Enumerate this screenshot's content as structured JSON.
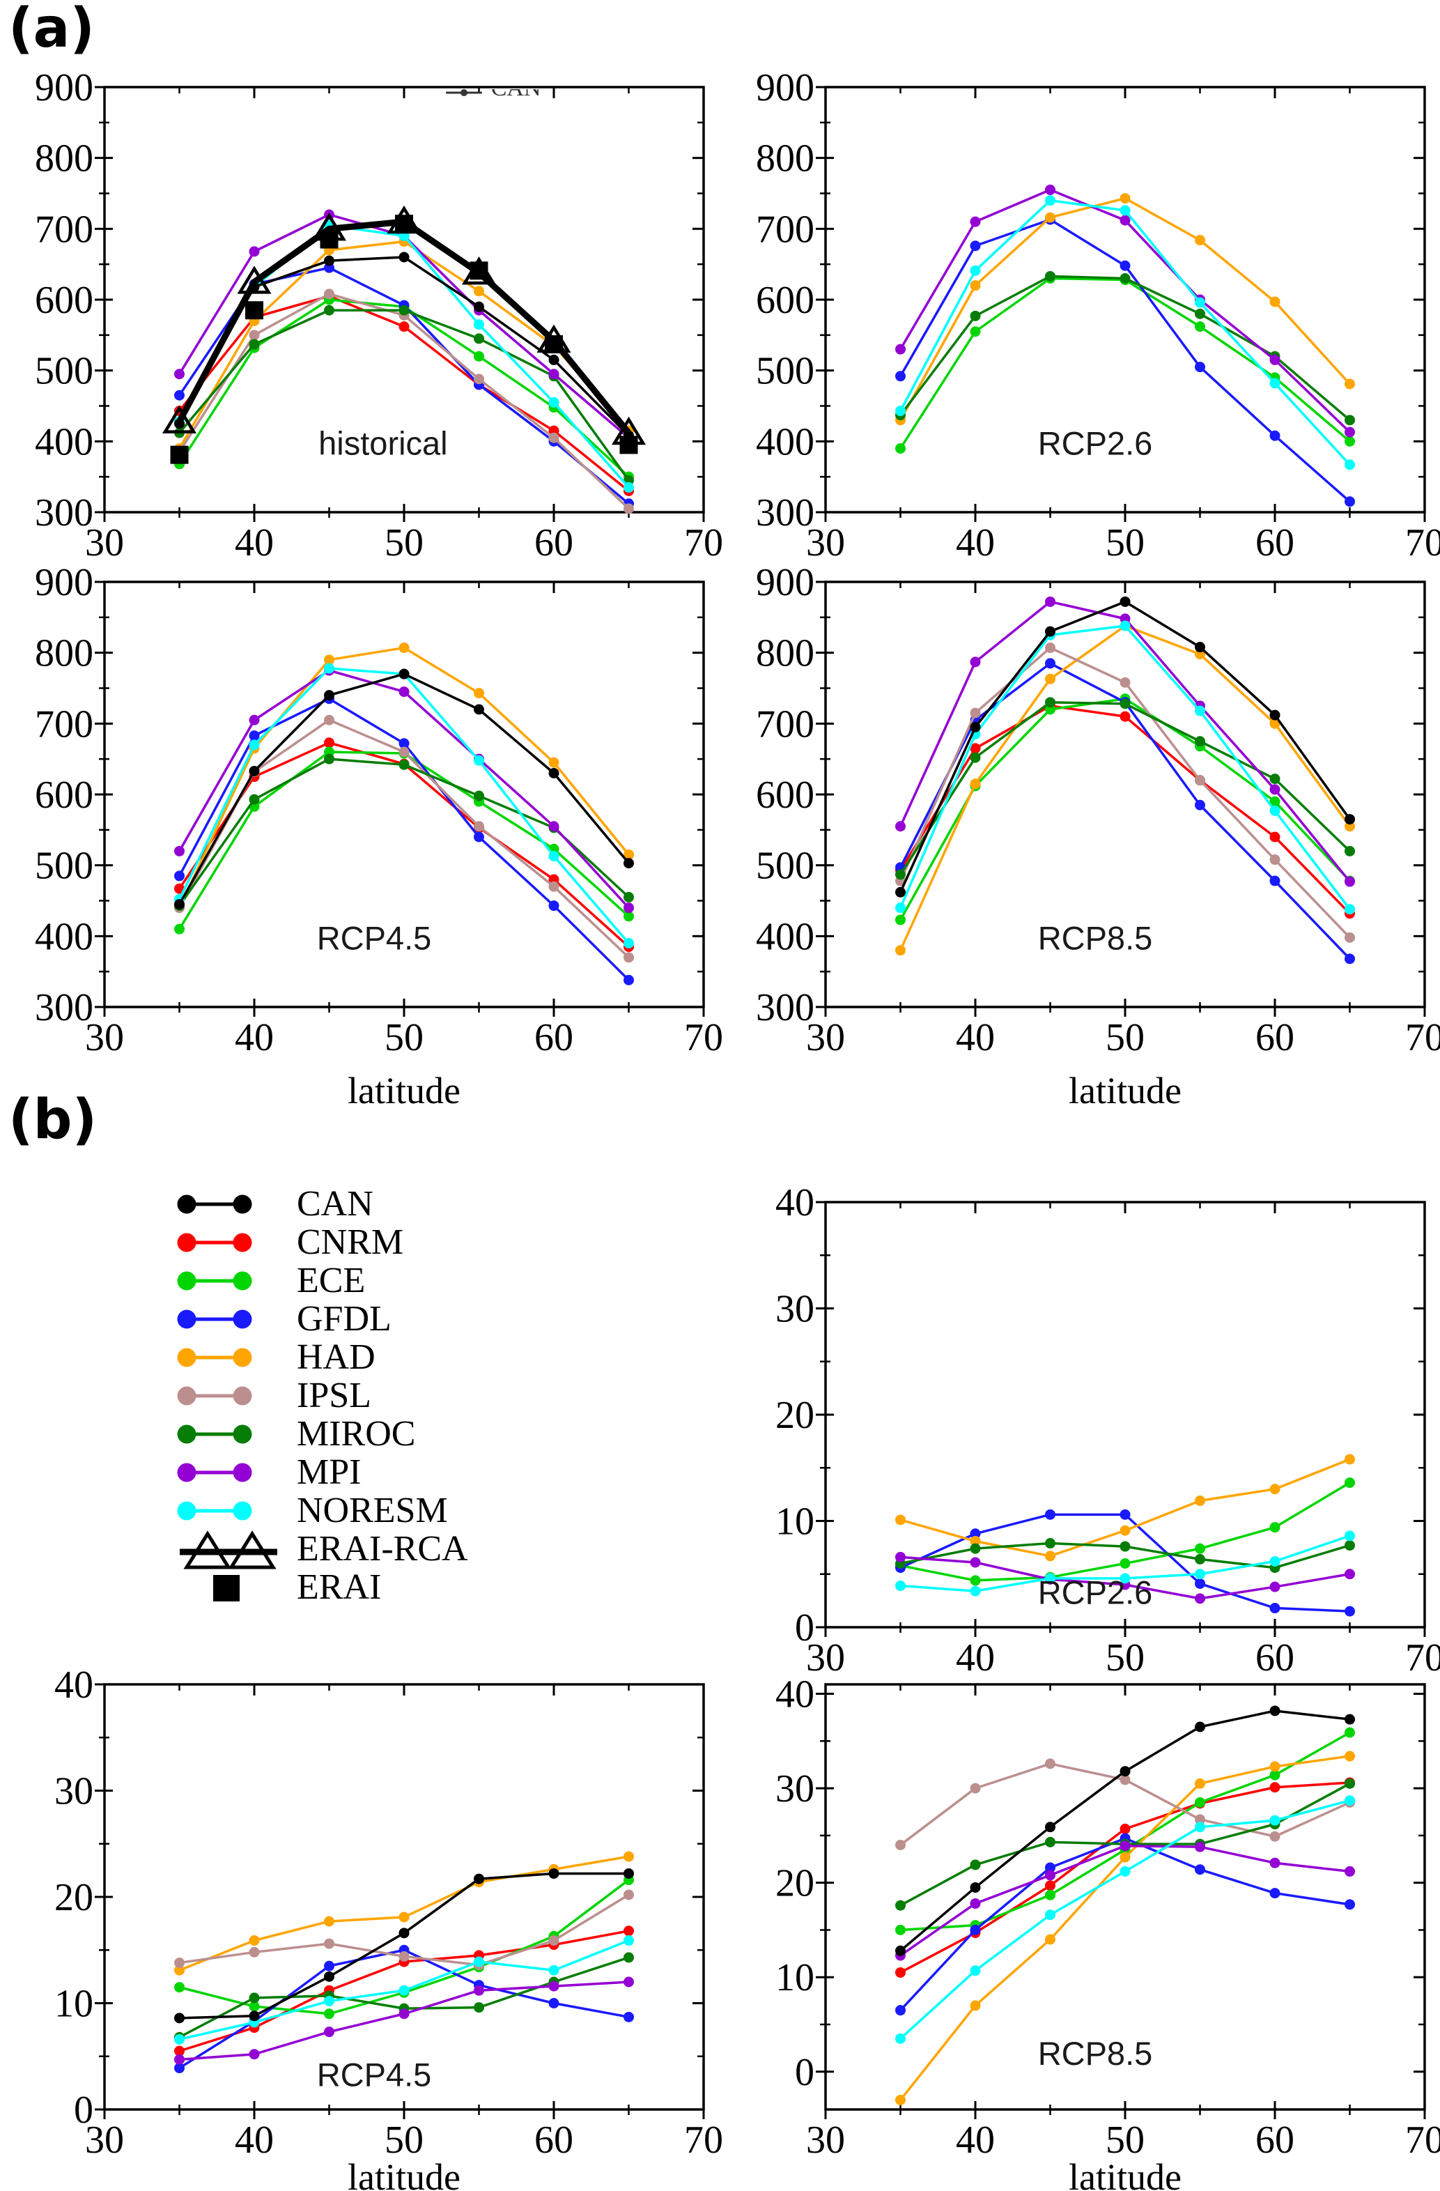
{
  "figure": {
    "panel_a_label": "(a)",
    "panel_b_label": "(b)",
    "x_axis_title": "latitude",
    "clipped_legend_fragment": "CAN"
  },
  "models": [
    {
      "name": "CAN",
      "color": "#000000",
      "marker": "circle"
    },
    {
      "name": "CNRM",
      "color": "#ff0000",
      "marker": "circle"
    },
    {
      "name": "ECE",
      "color": "#00d500",
      "marker": "circle"
    },
    {
      "name": "GFDL",
      "color": "#1a1aff",
      "marker": "circle"
    },
    {
      "name": "HAD",
      "color": "#ffa500",
      "marker": "circle"
    },
    {
      "name": "IPSL",
      "color": "#bc8f8f",
      "marker": "circle"
    },
    {
      "name": "MIROC",
      "color": "#067d06",
      "marker": "circle"
    },
    {
      "name": "MPI",
      "color": "#9400d3",
      "marker": "circle"
    },
    {
      "name": "NORESM",
      "color": "#00ffff",
      "marker": "circle"
    },
    {
      "name": "ERAI-RCA",
      "color": "#000000",
      "marker": "triangle-open",
      "line_width": 9
    },
    {
      "name": "ERAI",
      "color": "#000000",
      "marker": "square",
      "line_width": 0
    }
  ],
  "legend": {
    "entries": [
      "CAN",
      "CNRM",
      "ECE",
      "GFDL",
      "HAD",
      "IPSL",
      "MIROC",
      "MPI",
      "NORESM",
      "ERAI-RCA",
      "ERAI"
    ]
  },
  "chart_data": [
    {
      "id": "historical",
      "panel": "a",
      "type": "line",
      "annotation": "historical",
      "x": [
        35,
        40,
        45,
        50,
        55,
        60,
        65
      ],
      "xlim": [
        30,
        70
      ],
      "ylim": [
        300,
        900
      ],
      "xtick": {
        "major": 10,
        "minor": 5
      },
      "ytick": {
        "major": 100,
        "minor": 50
      },
      "x_axis_title": "",
      "series": [
        {
          "name": "CNRM",
          "values": [
            443,
            575,
            605,
            562,
            480,
            415,
            330
          ]
        },
        {
          "name": "ECE",
          "values": [
            368,
            532,
            600,
            590,
            520,
            448,
            350
          ]
        },
        {
          "name": "GFDL",
          "values": [
            465,
            622,
            645,
            592,
            480,
            400,
            312
          ]
        },
        {
          "name": "HAD",
          "values": [
            390,
            570,
            670,
            682,
            612,
            535,
            415
          ]
        },
        {
          "name": "IPSL",
          "values": [
            385,
            550,
            608,
            578,
            488,
            405,
            305
          ]
        },
        {
          "name": "MIROC",
          "values": [
            412,
            537,
            585,
            585,
            545,
            492,
            345
          ]
        },
        {
          "name": "MPI",
          "values": [
            495,
            668,
            720,
            690,
            585,
            495,
            405
          ]
        },
        {
          "name": "NORESM",
          "values": [
            428,
            618,
            705,
            690,
            565,
            455,
            335
          ]
        },
        {
          "name": "CAN",
          "values": [
            425,
            618,
            655,
            660,
            590,
            515,
            408
          ]
        },
        {
          "name": "ERAI-RCA",
          "values": [
            428,
            625,
            700,
            710,
            638,
            542,
            412
          ]
        },
        {
          "name": "ERAI",
          "values": [
            381,
            585,
            685,
            707,
            641,
            537,
            395
          ]
        }
      ]
    },
    {
      "id": "rcp26_a",
      "panel": "a",
      "type": "line",
      "annotation": "RCP2.6",
      "x": [
        35,
        40,
        45,
        50,
        55,
        60,
        65
      ],
      "xlim": [
        30,
        70
      ],
      "ylim": [
        300,
        900
      ],
      "xtick": {
        "major": 10,
        "minor": 5
      },
      "ytick": {
        "major": 100,
        "minor": 50
      },
      "x_axis_title": "",
      "series": [
        {
          "name": "ECE",
          "values": [
            390,
            555,
            630,
            628,
            562,
            490,
            400
          ]
        },
        {
          "name": "GFDL",
          "values": [
            492,
            676,
            713,
            648,
            505,
            408,
            315
          ]
        },
        {
          "name": "HAD",
          "values": [
            430,
            620,
            716,
            743,
            684,
            597,
            481
          ]
        },
        {
          "name": "MIROC",
          "values": [
            437,
            577,
            633,
            630,
            580,
            520,
            430
          ]
        },
        {
          "name": "MPI",
          "values": [
            530,
            710,
            755,
            712,
            600,
            515,
            413
          ]
        },
        {
          "name": "NORESM",
          "values": [
            443,
            641,
            740,
            726,
            596,
            482,
            367
          ]
        }
      ]
    },
    {
      "id": "rcp45_a",
      "panel": "a",
      "type": "line",
      "annotation": "RCP4.5",
      "x": [
        35,
        40,
        45,
        50,
        55,
        60,
        65
      ],
      "xlim": [
        30,
        70
      ],
      "ylim": [
        300,
        900
      ],
      "xtick": {
        "major": 10,
        "minor": 5
      },
      "ytick": {
        "major": 100,
        "minor": 50
      },
      "x_axis_title": "latitude",
      "series": [
        {
          "name": "CNRM",
          "values": [
            467,
            625,
            673,
            643,
            553,
            480,
            385
          ]
        },
        {
          "name": "ECE",
          "values": [
            410,
            583,
            660,
            658,
            590,
            523,
            428
          ]
        },
        {
          "name": "GFDL",
          "values": [
            485,
            683,
            735,
            672,
            540,
            443,
            338
          ]
        },
        {
          "name": "HAD",
          "values": [
            440,
            665,
            790,
            807,
            743,
            645,
            515
          ]
        },
        {
          "name": "IPSL",
          "values": [
            440,
            632,
            705,
            660,
            555,
            470,
            370
          ]
        },
        {
          "name": "MIROC",
          "values": [
            443,
            593,
            650,
            642,
            598,
            553,
            455
          ]
        },
        {
          "name": "MPI",
          "values": [
            520,
            705,
            775,
            745,
            650,
            555,
            440
          ]
        },
        {
          "name": "NORESM",
          "values": [
            452,
            670,
            778,
            770,
            648,
            513,
            390
          ]
        },
        {
          "name": "CAN",
          "values": [
            445,
            633,
            740,
            770,
            720,
            630,
            503
          ]
        }
      ]
    },
    {
      "id": "rcp85_a",
      "panel": "a",
      "type": "line",
      "annotation": "RCP8.5",
      "x": [
        35,
        40,
        45,
        50,
        55,
        60,
        65
      ],
      "xlim": [
        30,
        70
      ],
      "ylim": [
        300,
        900
      ],
      "xtick": {
        "major": 10,
        "minor": 5
      },
      "ytick": {
        "major": 100,
        "minor": 50
      },
      "x_axis_title": "latitude",
      "series": [
        {
          "name": "CNRM",
          "values": [
            493,
            665,
            725,
            710,
            620,
            540,
            432
          ]
        },
        {
          "name": "ECE",
          "values": [
            423,
            612,
            720,
            735,
            668,
            590,
            478
          ]
        },
        {
          "name": "GFDL",
          "values": [
            497,
            705,
            785,
            730,
            585,
            478,
            368
          ]
        },
        {
          "name": "HAD",
          "values": [
            380,
            615,
            763,
            838,
            798,
            700,
            555
          ]
        },
        {
          "name": "IPSL",
          "values": [
            478,
            715,
            807,
            758,
            620,
            508,
            398
          ]
        },
        {
          "name": "MIROC",
          "values": [
            487,
            652,
            730,
            728,
            675,
            622,
            520
          ]
        },
        {
          "name": "MPI",
          "values": [
            555,
            787,
            872,
            848,
            725,
            607,
            477
          ]
        },
        {
          "name": "NORESM",
          "values": [
            440,
            685,
            825,
            838,
            718,
            577,
            438
          ]
        },
        {
          "name": "CAN",
          "values": [
            462,
            695,
            830,
            872,
            808,
            712,
            565
          ]
        }
      ]
    },
    {
      "id": "rcp26_b",
      "panel": "b",
      "type": "line",
      "annotation": "RCP2.6",
      "x": [
        35,
        40,
        45,
        50,
        55,
        60,
        65
      ],
      "xlim": [
        30,
        70
      ],
      "ylim": [
        0,
        40
      ],
      "xtick": {
        "major": 10,
        "minor": 5
      },
      "ytick": {
        "major": 10,
        "minor": 5
      },
      "x_axis_title": "",
      "series": [
        {
          "name": "ECE",
          "values": [
            5.8,
            4.4,
            4.7,
            6.0,
            7.4,
            9.4,
            13.6
          ]
        },
        {
          "name": "GFDL",
          "values": [
            5.6,
            8.8,
            10.6,
            10.6,
            4.1,
            1.8,
            1.5
          ]
        },
        {
          "name": "HAD",
          "values": [
            10.1,
            8.1,
            6.7,
            9.1,
            11.9,
            13.0,
            15.8
          ]
        },
        {
          "name": "MIROC",
          "values": [
            6.0,
            7.4,
            7.9,
            7.6,
            6.4,
            5.6,
            7.7
          ]
        },
        {
          "name": "MPI",
          "values": [
            6.6,
            6.1,
            4.5,
            4.0,
            2.7,
            3.8,
            5.0
          ]
        },
        {
          "name": "NORESM",
          "values": [
            3.9,
            3.4,
            4.6,
            4.6,
            5.0,
            6.2,
            8.6
          ]
        }
      ]
    },
    {
      "id": "rcp45_b",
      "panel": "b",
      "type": "line",
      "annotation": "RCP4.5",
      "x": [
        35,
        40,
        45,
        50,
        55,
        60,
        65
      ],
      "xlim": [
        30,
        70
      ],
      "ylim": [
        0,
        40
      ],
      "xtick": {
        "major": 10,
        "minor": 5
      },
      "ytick": {
        "major": 10,
        "minor": 5
      },
      "x_axis_title": "latitude",
      "series": [
        {
          "name": "CNRM",
          "values": [
            5.5,
            7.7,
            11.2,
            13.9,
            14.5,
            15.5,
            16.8
          ]
        },
        {
          "name": "ECE",
          "values": [
            11.5,
            9.7,
            9.0,
            11.0,
            13.4,
            16.3,
            21.6
          ]
        },
        {
          "name": "GFDL",
          "values": [
            3.9,
            8.3,
            13.5,
            15.0,
            11.7,
            10.0,
            8.7
          ]
        },
        {
          "name": "HAD",
          "values": [
            13.1,
            15.9,
            17.7,
            18.1,
            21.4,
            22.6,
            23.8
          ]
        },
        {
          "name": "IPSL",
          "values": [
            13.8,
            14.8,
            15.6,
            14.4,
            13.6,
            15.9,
            20.2
          ]
        },
        {
          "name": "MIROC",
          "values": [
            6.8,
            10.5,
            10.7,
            9.5,
            9.6,
            12.0,
            14.3
          ]
        },
        {
          "name": "MPI",
          "values": [
            4.7,
            5.2,
            7.3,
            9.0,
            11.2,
            11.6,
            12.0
          ]
        },
        {
          "name": "NORESM",
          "values": [
            6.6,
            8.2,
            10.2,
            11.2,
            13.9,
            13.1,
            15.9
          ]
        },
        {
          "name": "CAN",
          "values": [
            8.6,
            8.8,
            12.5,
            16.6,
            21.7,
            22.2,
            22.2
          ]
        }
      ]
    },
    {
      "id": "rcp85_b",
      "panel": "b",
      "type": "line",
      "annotation": "RCP8.5",
      "x": [
        35,
        40,
        45,
        50,
        55,
        60,
        65
      ],
      "xlim": [
        30,
        70
      ],
      "ylim": [
        -4,
        41
      ],
      "xtick": {
        "major": 10,
        "minor": 5
      },
      "ytick": {
        "major": 10,
        "minor": 5
      },
      "x_axis_title": "latitude",
      "series": [
        {
          "name": "CNRM",
          "values": [
            10.5,
            14.7,
            19.7,
            25.7,
            28.4,
            30.1,
            30.6
          ]
        },
        {
          "name": "ECE",
          "values": [
            15.0,
            15.5,
            18.7,
            23.5,
            28.5,
            31.4,
            35.9
          ]
        },
        {
          "name": "GFDL",
          "values": [
            6.5,
            15.0,
            21.6,
            24.7,
            21.4,
            18.9,
            17.7
          ]
        },
        {
          "name": "HAD",
          "values": [
            -3.0,
            7.0,
            14.0,
            22.7,
            30.5,
            32.3,
            33.4
          ]
        },
        {
          "name": "IPSL",
          "values": [
            24.0,
            30.0,
            32.6,
            30.9,
            26.7,
            24.9,
            28.5
          ]
        },
        {
          "name": "MIROC",
          "values": [
            17.6,
            21.9,
            24.3,
            24.1,
            24.1,
            26.2,
            30.5
          ]
        },
        {
          "name": "MPI",
          "values": [
            12.3,
            17.8,
            20.8,
            23.9,
            23.8,
            22.1,
            21.2
          ]
        },
        {
          "name": "NORESM",
          "values": [
            3.5,
            10.7,
            16.6,
            21.2,
            25.9,
            26.6,
            28.7
          ]
        },
        {
          "name": "CAN",
          "values": [
            12.8,
            19.5,
            25.9,
            31.8,
            36.5,
            38.2,
            37.3
          ]
        }
      ]
    }
  ]
}
